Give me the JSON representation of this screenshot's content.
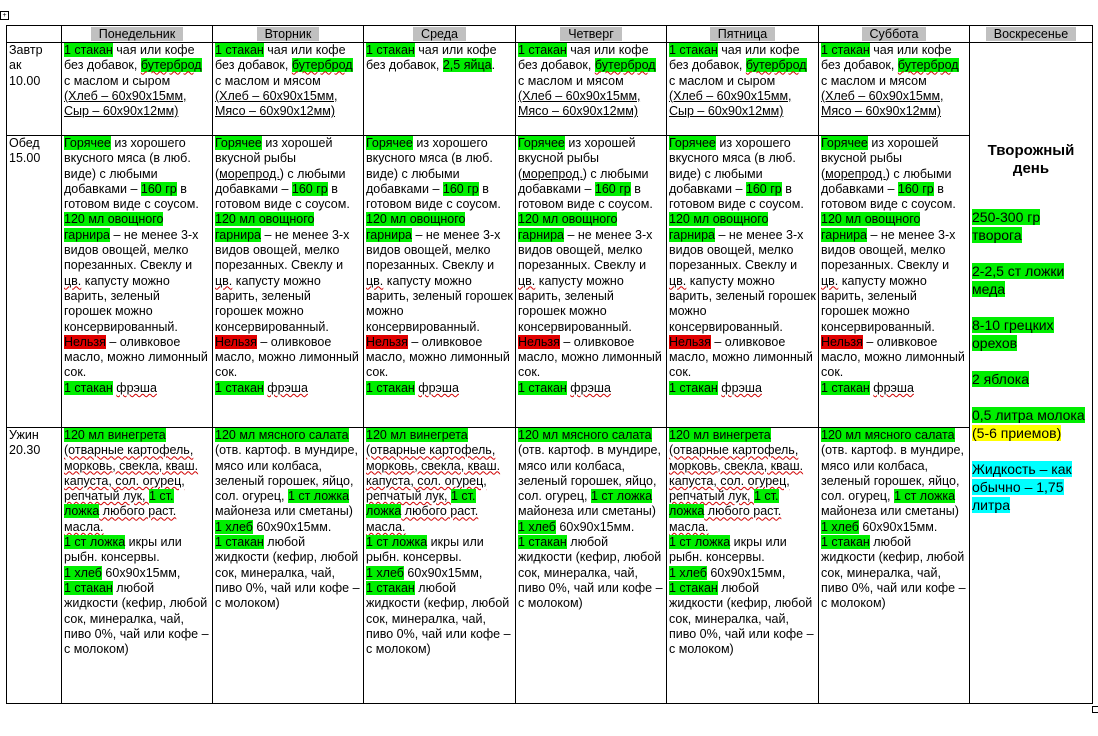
{
  "days": [
    "Понедельник",
    "Вторник",
    "Среда",
    "Четверг",
    "Пятница",
    "Суббота",
    "Воскресенье"
  ],
  "times": {
    "breakfast": [
      "Завтр",
      "ак",
      "10.00"
    ],
    "lunch": [
      "Обед",
      "15.00"
    ],
    "dinner": [
      "Ужин",
      "20.30"
    ]
  },
  "breakfast": {
    "a": {
      "glass": "1 стакан",
      "tea": " чая или кофе без добавок, ",
      "sandwich": "бутерброд",
      "with_butter": " с маслом и сыром",
      "portion": "(Хлеб – 60х90х15мм, Сыр – 60х90х12мм)"
    },
    "b": {
      "glass": "1 стакан",
      "tea": " чая или кофе без добавок, ",
      "sandwich": "бутерброд",
      "with_butter": " с маслом и мясом",
      "portion": "(Хлеб – 60х90х15мм, Мясо – 60х90х12мм)"
    },
    "wed": {
      "glass": "1 стакан",
      "tea": " чая или кофе без добавок, ",
      "eggs": "2,5 яйца",
      "dot": "."
    }
  },
  "lunch": {
    "hot": "Горячее",
    "meat_text": " из хорошего вкусного мяса (в люб. виде) с любыми добавками – ",
    "fish_text1": " из хорошей вкусной рыбы (",
    "seafood": "морепрод.",
    "fish_text2": ") с любыми добавками – ",
    "grams": "160 гр",
    "after_grams": " в готовом виде с соусом.",
    "garnish": "120 мл овощного гарнира",
    "garnish_text": " – не менее 3-х видов овощей, мелко порезанных. Свеклу и ",
    "cv": "цв.",
    "garnish_text2": " капусту можно варить, зеленый горошек можно консервированный.",
    "forbidden": "Нельзя",
    "forbidden_text": " – оливковое масло, можно лимонный сок.",
    "glass": "1  стакан",
    "fresh": "фрэша"
  },
  "dinner": {
    "vinegret": "120 мл винегрета",
    "vinegret_text": " (отварные картофель, морковь, свекла, кваш. капуста, сол. огурец, репчатый лук, ",
    "spoon_oil": "1 ст. ложка",
    "oil_text": " любого раст. масла.",
    "spoon_caviar": "1 ст ложка",
    "caviar_text": " икры или рыбн. консервы.",
    "bread": "1 хлеб",
    "bread_text": " 60х90х15мм,",
    "glass": "1 стакан",
    "drink_text": " любой жидкости (кефир, любой сок, минералка, чай, пиво 0%, чай или кофе – с молоком)",
    "meat_salad": "120 мл мясного салата",
    "meat_salad_text": " (отв. картоф. в мундире, мясо или колбаса, зеленый горошек, яйцо, сол. огурец, ",
    "spoon_mayo": "1 ст ложка",
    "mayo_text": " майонеза или сметаны) ",
    "bread2_text": " 60х90х15мм."
  },
  "sunday": {
    "title": "Творожный день",
    "items": [
      "250-300 гр творога",
      "2-2,5 ст ложки меда",
      "8-10 грецких орехов",
      "2 яблока",
      "0,5 литра молока"
    ],
    "portions": "(5-6 приемов)",
    "liquid": "Жидкость – как обычно – 1,75 литра"
  },
  "colors": {
    "highlight_green": "#00ee00",
    "highlight_red": "#e00000",
    "highlight_yellow": "#ffff00",
    "highlight_cyan": "#00ffff",
    "header_gray": "#c0c0c0"
  }
}
